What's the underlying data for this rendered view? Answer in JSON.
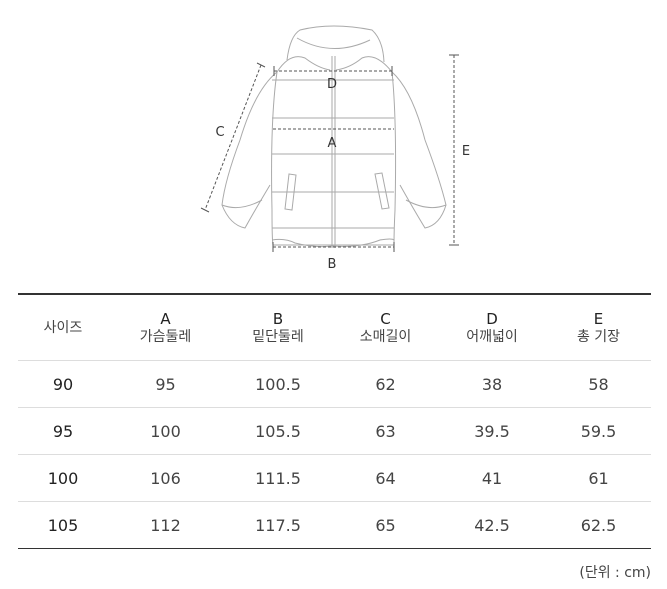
{
  "diagram": {
    "labels": {
      "A": "A",
      "B": "B",
      "C": "C",
      "D": "D",
      "E": "E"
    }
  },
  "table": {
    "headers": [
      {
        "key": "",
        "label": "사이즈"
      },
      {
        "key": "A",
        "label": "가슴둘레"
      },
      {
        "key": "B",
        "label": "밑단둘레"
      },
      {
        "key": "C",
        "label": "소매길이"
      },
      {
        "key": "D",
        "label": "어깨넓이"
      },
      {
        "key": "E",
        "label": "총 기장"
      }
    ],
    "rows": [
      [
        "90",
        "95",
        "100.5",
        "62",
        "38",
        "58"
      ],
      [
        "95",
        "100",
        "105.5",
        "63",
        "39.5",
        "59.5"
      ],
      [
        "100",
        "106",
        "111.5",
        "64",
        "41",
        "61"
      ],
      [
        "105",
        "112",
        "117.5",
        "65",
        "42.5",
        "62.5"
      ]
    ]
  },
  "unit_note": "(단위 : cm)"
}
